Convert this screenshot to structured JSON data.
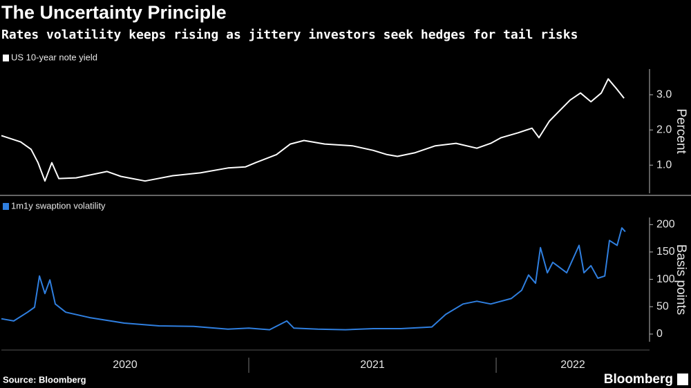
{
  "title": "The Uncertainty Principle",
  "subtitle": "Rates volatility keeps rising as jittery investors seek hedges for tail risks",
  "source": "Source: Bloomberg",
  "brand": "Bloomberg",
  "chart_data": [
    {
      "type": "line",
      "y_label": "Percent",
      "xlim": [
        2020,
        2022.62
      ],
      "ylim": [
        0.2,
        3.73
      ],
      "yticks": [
        {
          "value": 1,
          "label": "1.0"
        },
        {
          "value": 2,
          "label": "2.0"
        },
        {
          "value": 3,
          "label": "3.0"
        }
      ],
      "x": [
        2020.0,
        2020.078,
        2020.12,
        2020.148,
        2020.176,
        2020.204,
        2020.232,
        2020.302,
        2020.427,
        2020.483,
        2020.581,
        2020.693,
        2020.804,
        2020.916,
        2020.986,
        2021.028,
        2021.112,
        2021.168,
        2021.223,
        2021.307,
        2021.419,
        2021.503,
        2021.559,
        2021.601,
        2021.67,
        2021.754,
        2021.838,
        2021.922,
        2021.978,
        2022.02,
        2022.089,
        2022.145,
        2022.173,
        2022.215,
        2022.257,
        2022.299,
        2022.341,
        2022.383,
        2022.425,
        2022.453,
        2022.489,
        2022.517
      ],
      "series": [
        {
          "name": "US 10-year note yield",
          "color": "#ffffff",
          "values": [
            1.84,
            1.66,
            1.45,
            1.07,
            0.55,
            1.07,
            0.62,
            0.64,
            0.82,
            0.68,
            0.55,
            0.7,
            0.78,
            0.92,
            0.95,
            1.07,
            1.3,
            1.6,
            1.7,
            1.6,
            1.55,
            1.42,
            1.3,
            1.25,
            1.35,
            1.55,
            1.62,
            1.48,
            1.62,
            1.78,
            1.92,
            2.05,
            1.78,
            2.25,
            2.55,
            2.85,
            3.05,
            2.8,
            3.05,
            3.45,
            3.15,
            2.9
          ]
        }
      ]
    },
    {
      "type": "line",
      "y_label": "Basis points",
      "xlim": [
        2020,
        2022.62
      ],
      "xticks": [
        2020,
        2021,
        2022
      ],
      "ylim": [
        -14,
        213
      ],
      "yticks": [
        0,
        50,
        100,
        150,
        200
      ],
      "x": [
        2020.0,
        2020.05,
        2020.106,
        2020.134,
        2020.154,
        2020.176,
        2020.196,
        2020.218,
        2020.26,
        2020.358,
        2020.497,
        2020.637,
        2020.777,
        2020.916,
        2021.0,
        2021.084,
        2021.154,
        2021.182,
        2021.279,
        2021.391,
        2021.503,
        2021.615,
        2021.74,
        2021.796,
        2021.866,
        2021.922,
        2021.978,
        2022.061,
        2022.103,
        2022.131,
        2022.159,
        2022.179,
        2022.207,
        2022.229,
        2022.285,
        2022.335,
        2022.355,
        2022.383,
        2022.411,
        2022.439,
        2022.458,
        2022.489,
        2022.508,
        2022.522
      ],
      "series": [
        {
          "name": "1m1y swaption volatility",
          "color": "#2f7fe0",
          "values": [
            28,
            24,
            40,
            49,
            106,
            74,
            99,
            55,
            40,
            30,
            20,
            15,
            14,
            9,
            11,
            8,
            24,
            11,
            9,
            8,
            10,
            10,
            13,
            36,
            55,
            60,
            55,
            65,
            80,
            108,
            93,
            158,
            112,
            131,
            112,
            162,
            112,
            125,
            102,
            106,
            171,
            162,
            194,
            187
          ]
        }
      ]
    }
  ]
}
